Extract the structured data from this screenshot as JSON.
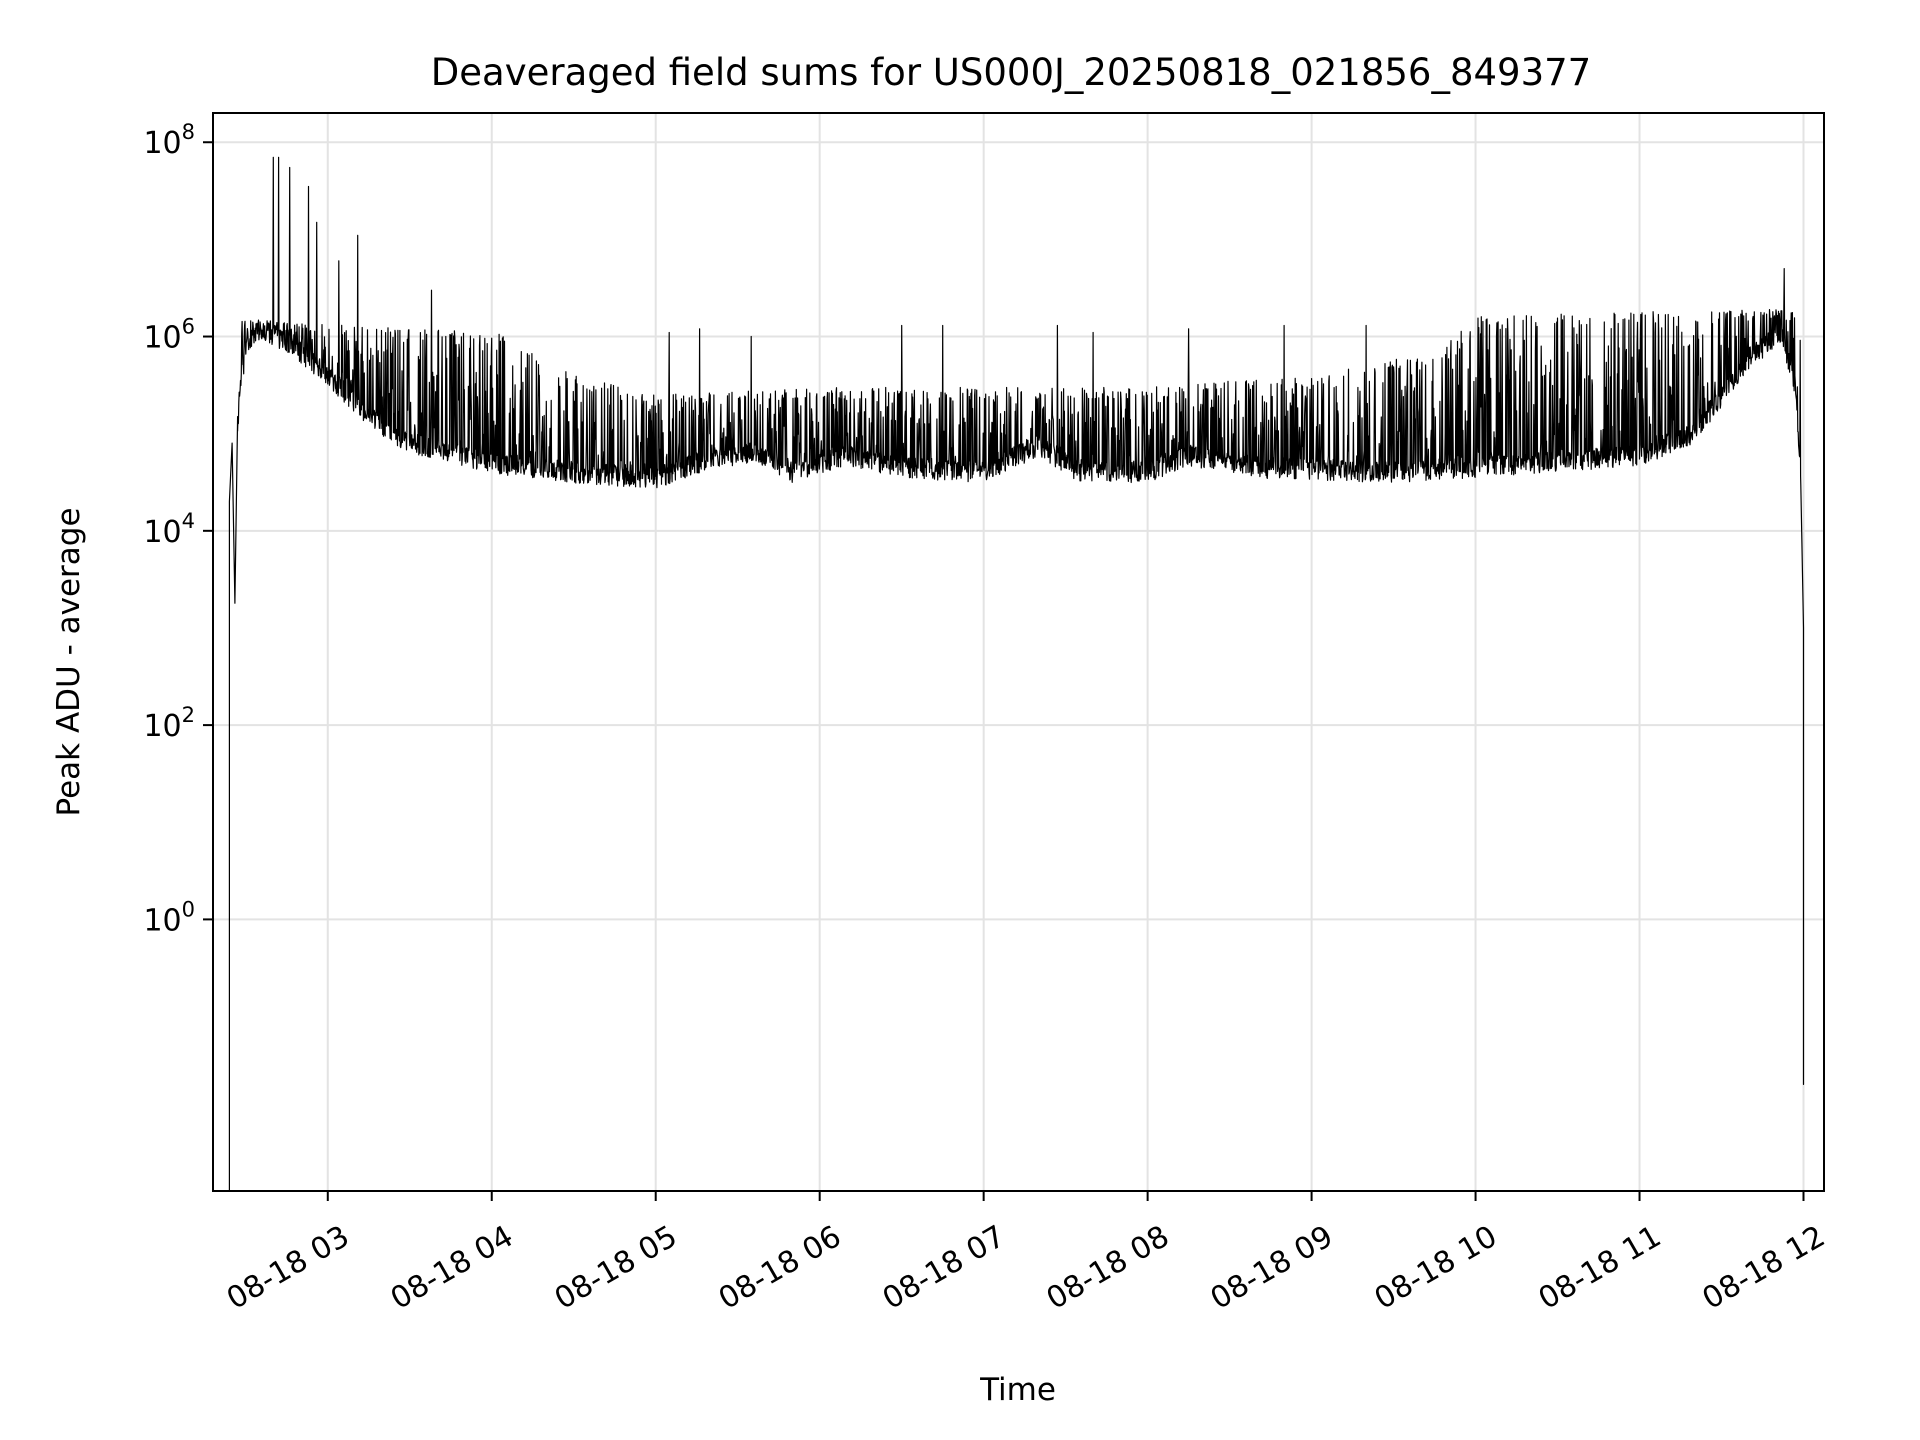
{
  "chart_data": {
    "type": "line",
    "title": "Deaveraged field sums for US000J_20250818_021856_849377",
    "xlabel": "Time",
    "ylabel": "Peak ADU - average",
    "y_scale": "log",
    "ylim": [
      0.0016,
      200000000
    ],
    "xlim": [
      "2025-08-18 02:18:00",
      "2025-08-18 12:07:30"
    ],
    "grid": true,
    "line_color": "#000000",
    "x_ticks": [
      "08-18 03",
      "08-18 04",
      "08-18 05",
      "08-18 06",
      "08-18 07",
      "08-18 08",
      "08-18 09",
      "08-18 10",
      "08-18 11",
      "08-18 12"
    ],
    "x_tick_times": [
      "2025-08-18 03:00",
      "2025-08-18 04:00",
      "2025-08-18 05:00",
      "2025-08-18 06:00",
      "2025-08-18 07:00",
      "2025-08-18 08:00",
      "2025-08-18 09:00",
      "2025-08-18 10:00",
      "2025-08-18 11:00",
      "2025-08-18 12:00"
    ],
    "y_ticks": [
      {
        "base": "10",
        "exp": "0",
        "value": 1
      },
      {
        "base": "10",
        "exp": "2",
        "value": 100
      },
      {
        "base": "10",
        "exp": "4",
        "value": 10000
      },
      {
        "base": "10",
        "exp": "6",
        "value": 1000000
      },
      {
        "base": "10",
        "exp": "8",
        "value": 100000000
      }
    ],
    "series": [
      {
        "baseline": [
          [
            "2025-08-18 02:25",
            20000
          ],
          [
            "2025-08-18 02:28",
            300000
          ],
          [
            "2025-08-18 02:30",
            700000
          ],
          [
            "2025-08-18 02:35",
            1200000
          ],
          [
            "2025-08-18 02:45",
            900000
          ],
          [
            "2025-08-18 03:00",
            400000
          ],
          [
            "2025-08-18 03:15",
            150000
          ],
          [
            "2025-08-18 03:30",
            80000
          ],
          [
            "2025-08-18 04:00",
            50000
          ],
          [
            "2025-08-18 04:30",
            40000
          ],
          [
            "2025-08-18 05:00",
            35000
          ],
          [
            "2025-08-18 05:20",
            55000
          ],
          [
            "2025-08-18 05:35",
            65000
          ],
          [
            "2025-08-18 05:50",
            40000
          ],
          [
            "2025-08-18 06:10",
            60000
          ],
          [
            "2025-08-18 06:30",
            45000
          ],
          [
            "2025-08-18 07:00",
            40000
          ],
          [
            "2025-08-18 07:20",
            75000
          ],
          [
            "2025-08-18 07:35",
            40000
          ],
          [
            "2025-08-18 08:00",
            40000
          ],
          [
            "2025-08-18 08:15",
            60000
          ],
          [
            "2025-08-18 08:40",
            45000
          ],
          [
            "2025-08-18 09:30",
            40000
          ],
          [
            "2025-08-18 10:00",
            45000
          ],
          [
            "2025-08-18 11:00",
            60000
          ],
          [
            "2025-08-18 11:20",
            100000
          ],
          [
            "2025-08-18 11:40",
            600000
          ],
          [
            "2025-08-18 11:52",
            1100000
          ],
          [
            "2025-08-18 11:57",
            300000
          ],
          [
            "2025-08-18 11:59",
            30000
          ]
        ],
        "envelope": [
          [
            "2025-08-18 02:30",
            1500000
          ],
          [
            "2025-08-18 03:30",
            1200000
          ],
          [
            "2025-08-18 04:00",
            1200000
          ],
          [
            "2025-08-18 04:30",
            400000
          ],
          [
            "2025-08-18 05:00",
            250000
          ],
          [
            "2025-08-18 06:00",
            300000
          ],
          [
            "2025-08-18 07:00",
            300000
          ],
          [
            "2025-08-18 08:00",
            300000
          ],
          [
            "2025-08-18 09:00",
            400000
          ],
          [
            "2025-08-18 09:45",
            700000
          ],
          [
            "2025-08-18 10:00",
            1600000
          ],
          [
            "2025-08-18 11:00",
            1800000
          ],
          [
            "2025-08-18 11:50",
            1900000
          ]
        ],
        "spikes": [
          [
            "2025-08-18 02:40",
            70000000
          ],
          [
            "2025-08-18 02:42",
            70000000
          ],
          [
            "2025-08-18 02:46",
            55000000
          ],
          [
            "2025-08-18 02:53",
            35000000
          ],
          [
            "2025-08-18 02:56",
            15000000
          ],
          [
            "2025-08-18 03:11",
            11000000
          ],
          [
            "2025-08-18 03:04",
            6000000
          ],
          [
            "2025-08-18 03:38",
            3000000
          ],
          [
            "2025-08-18 05:05",
            1100000
          ],
          [
            "2025-08-18 05:16",
            1200000
          ],
          [
            "2025-08-18 05:35",
            1000000
          ],
          [
            "2025-08-18 06:30",
            1300000
          ],
          [
            "2025-08-18 06:45",
            1300000
          ],
          [
            "2025-08-18 07:27",
            1300000
          ],
          [
            "2025-08-18 07:40",
            1100000
          ],
          [
            "2025-08-18 08:15",
            1200000
          ],
          [
            "2025-08-18 08:50",
            1300000
          ],
          [
            "2025-08-18 09:20",
            1300000
          ],
          [
            "2025-08-18 11:53",
            5000000
          ]
        ],
        "start_drop": [
          [
            "2025-08-18 02:24",
            0.0016
          ],
          [
            "2025-08-18 02:24",
            20000
          ],
          [
            "2025-08-18 02:25",
            80000
          ],
          [
            "2025-08-18 02:26",
            1800
          ],
          [
            "2025-08-18 02:27",
            150000
          ]
        ],
        "end_drop": [
          [
            "2025-08-18 11:59",
            30000
          ],
          [
            "2025-08-18 12:00",
            1000
          ],
          [
            "2025-08-18 12:00",
            0.02
          ],
          [
            "2025-08-18 12:00",
            7
          ]
        ]
      }
    ]
  }
}
